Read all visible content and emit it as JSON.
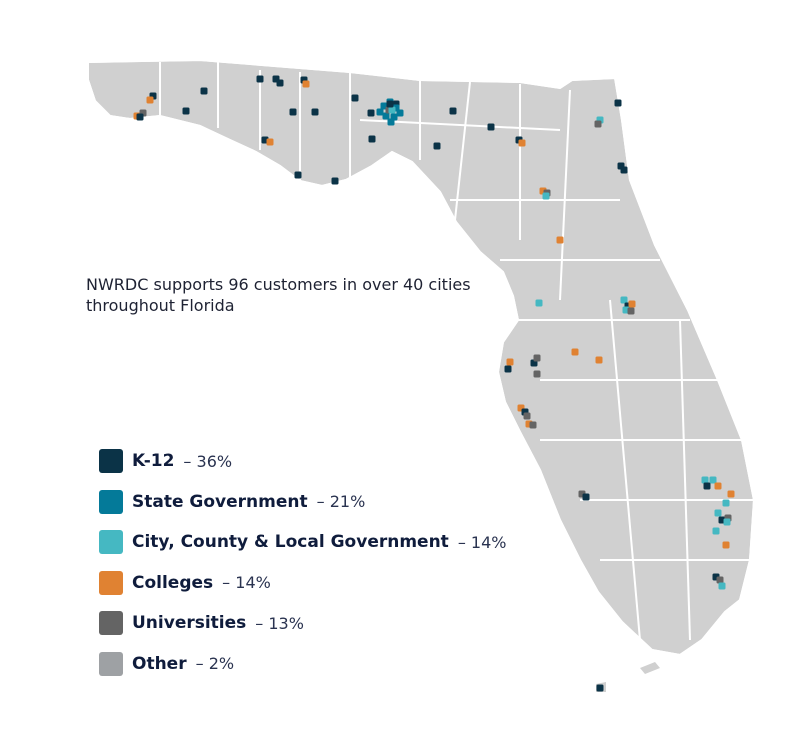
{
  "caption": "NWRDC supports 96 customers in over 40 cities throughout Florida",
  "map_background": "#d0d0d0",
  "legend": [
    {
      "key": "k12",
      "label": "K-12",
      "pct": "– 36%",
      "color": "#0b3347"
    },
    {
      "key": "state",
      "label": "State Government",
      "pct": "– 21%",
      "color": "#047a99"
    },
    {
      "key": "local",
      "label": "City, County & Local Government",
      "pct": "– 14%",
      "color": "#45b8c2"
    },
    {
      "key": "colleges",
      "label": "Colleges",
      "pct": "– 14%",
      "color": "#e08232"
    },
    {
      "key": "univ",
      "label": "Universities",
      "pct": "– 13%",
      "color": "#646464"
    },
    {
      "key": "other",
      "label": "Other",
      "pct": "– 2%",
      "color": "#9ea1a4"
    }
  ]
}
